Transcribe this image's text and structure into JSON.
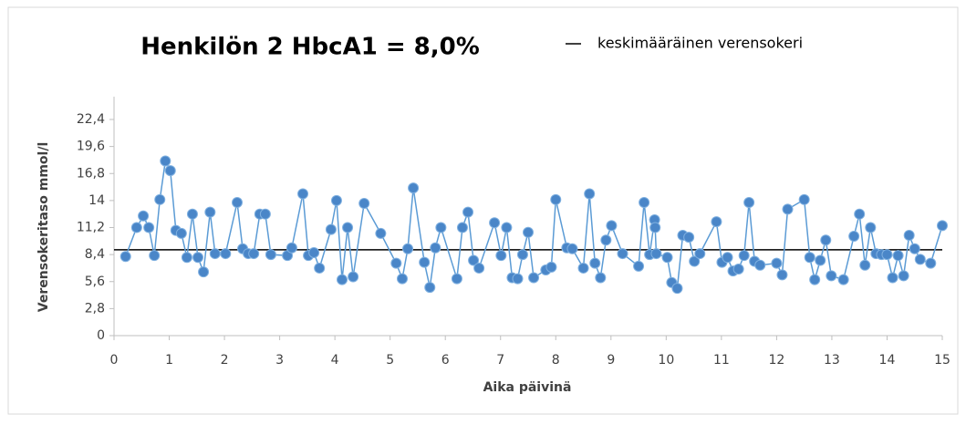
{
  "chart_data": {
    "type": "line",
    "title": "Henkilön 2 HbcA1 = 8,0%",
    "x_label": "Aika päivinä",
    "y_label": "Verensokeritaso mmol/l",
    "xlim": [
      0,
      15
    ],
    "xticks": [
      0,
      1,
      2,
      3,
      4,
      5,
      6,
      7,
      8,
      9,
      10,
      11,
      12,
      13,
      14,
      15
    ],
    "ylim": [
      0,
      22.4
    ],
    "yticks": [
      0,
      {
        "value": 2.8,
        "label": "2,8"
      },
      {
        "value": 5.6,
        "label": "5,6"
      },
      {
        "value": 8.4,
        "label": "8,4"
      },
      {
        "value": 11.2,
        "label": "11,2"
      },
      14,
      {
        "value": 16.8,
        "label": "16,8"
      },
      {
        "value": 19.6,
        "label": "19,6"
      },
      {
        "value": 22.4,
        "label": "22,4"
      }
    ],
    "grid": false,
    "series": [
      {
        "color": "#5b9bd5",
        "x": [
          0.21,
          0.41,
          0.53,
          0.63,
          0.73,
          0.83,
          0.93,
          1.02,
          1.12,
          1.22,
          1.32,
          1.42,
          1.52,
          1.62,
          1.74,
          1.83,
          2.02,
          2.23,
          2.33,
          2.43,
          2.53,
          2.64,
          2.74,
          2.84,
          3.14,
          3.22,
          3.42,
          3.52,
          3.62,
          3.72,
          3.93,
          4.03,
          4.13,
          4.23,
          4.33,
          4.53,
          4.83,
          5.11,
          5.22,
          5.32,
          5.42,
          5.62,
          5.72,
          5.82,
          5.92,
          6.21,
          6.31,
          6.41,
          6.51,
          6.61,
          6.89,
          7.01,
          7.11,
          7.21,
          7.31,
          7.4,
          7.5,
          7.6,
          7.82,
          7.92,
          8.0,
          8.2,
          8.3,
          8.5,
          8.61,
          8.71,
          8.81,
          8.91,
          9.01,
          9.21,
          9.5,
          9.6,
          9.7,
          9.79,
          9.8,
          9.82,
          10.02,
          10.1,
          10.2,
          10.3,
          10.41,
          10.51,
          10.61,
          10.91,
          11.01,
          11.11,
          11.21,
          11.31,
          11.41,
          11.5,
          11.6,
          11.7,
          12.0,
          12.1,
          12.2,
          12.5,
          12.6,
          12.69,
          12.79,
          12.89,
          12.99,
          13.21,
          13.4,
          13.5,
          13.6,
          13.7,
          13.8,
          13.9,
          14.0,
          14.1,
          14.2,
          14.3,
          14.4,
          14.5,
          14.6,
          14.79,
          15.0
        ],
        "values": [
          8.2,
          11.2,
          12.4,
          11.2,
          8.3,
          14.1,
          18.1,
          17.1,
          10.9,
          10.6,
          8.1,
          12.6,
          8.1,
          6.6,
          12.8,
          8.5,
          8.5,
          13.8,
          9.0,
          8.5,
          8.5,
          12.6,
          12.6,
          8.4,
          8.3,
          9.1,
          14.7,
          8.3,
          8.6,
          7.0,
          11.0,
          14.0,
          5.8,
          11.2,
          6.1,
          13.7,
          10.6,
          7.5,
          5.9,
          9.0,
          15.3,
          7.6,
          5.0,
          9.1,
          11.2,
          5.9,
          11.2,
          12.8,
          7.8,
          7.0,
          11.7,
          8.3,
          11.2,
          6.0,
          5.9,
          8.4,
          10.7,
          6.0,
          6.8,
          7.1,
          14.1,
          9.1,
          9.0,
          7.0,
          14.7,
          7.5,
          6.0,
          9.9,
          11.4,
          8.5,
          7.2,
          13.8,
          8.4,
          12.0,
          11.2,
          8.5,
          8.1,
          5.5,
          4.9,
          10.4,
          10.2,
          7.7,
          8.5,
          11.8,
          7.6,
          8.1,
          6.7,
          6.9,
          8.3,
          13.8,
          7.7,
          7.3,
          7.5,
          6.3,
          13.1,
          14.1,
          8.1,
          5.8,
          7.8,
          9.9,
          6.2,
          5.8,
          10.3,
          12.6,
          7.3,
          11.2,
          8.5,
          8.4,
          8.4,
          6.0,
          8.3,
          6.2,
          10.4,
          9.0,
          7.9,
          7.5,
          11.4
        ]
      }
    ],
    "reference_line": {
      "name": "keskimääräinen verensokeri",
      "color": "#000000",
      "value": 8.9
    }
  }
}
